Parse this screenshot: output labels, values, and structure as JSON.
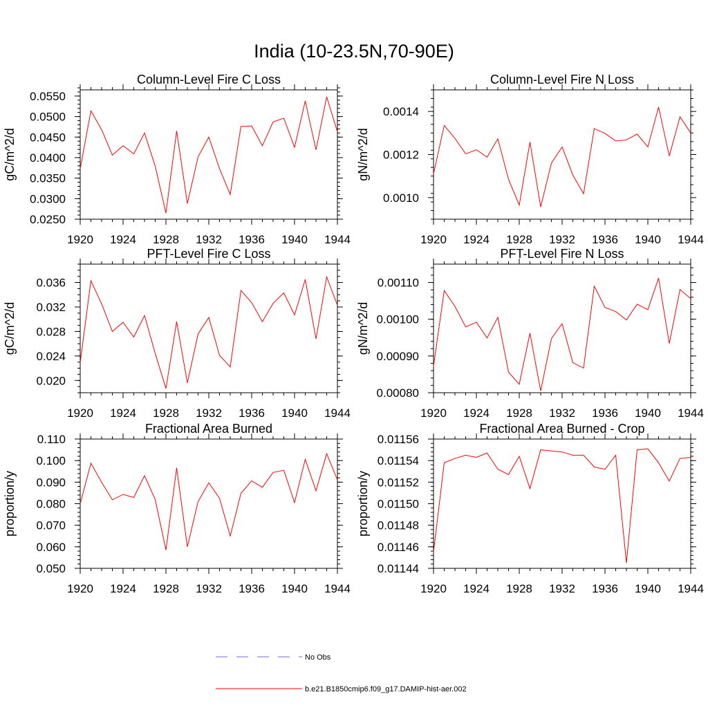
{
  "figure": {
    "title": "India (10-23.5N,70-90E)"
  },
  "legend": {
    "entries": [
      {
        "label": "No Obs",
        "color": "#6b6bd6",
        "style": "dashed"
      },
      {
        "label": "b.e21.B1850cmip6.f09_g17.DAMIP-hist-aer.002",
        "color": "#ff0000",
        "style": "solid"
      }
    ]
  },
  "chart_data": [
    {
      "type": "line",
      "title": "Column-Level Fire C Loss",
      "ylabel": "gC/m^2/d",
      "xlabel": "",
      "xlim": [
        1920,
        1944
      ],
      "ylim": [
        0.025,
        0.0565
      ],
      "xticks": [
        1920,
        1924,
        1928,
        1932,
        1936,
        1940,
        1944
      ],
      "yticks": [
        0.025,
        0.03,
        0.035,
        0.04,
        0.045,
        0.05,
        0.055
      ],
      "yticklabels": [
        "0.0250",
        "0.0300",
        "0.0350",
        "0.0400",
        "0.0450",
        "0.0500",
        "0.0550"
      ],
      "yminor": 0.001,
      "x": [
        1920,
        1921,
        1922,
        1923,
        1924,
        1925,
        1926,
        1927,
        1928,
        1929,
        1930,
        1931,
        1932,
        1933,
        1934,
        1935,
        1936,
        1937,
        1938,
        1939,
        1940,
        1941,
        1942,
        1943,
        1944
      ],
      "series": [
        {
          "name": "b.e21.B1850cmip6.f09_g17.DAMIP-hist-aer.002",
          "color": "#ff0000",
          "values": [
            0.0373,
            0.0514,
            0.0468,
            0.0406,
            0.0429,
            0.0409,
            0.046,
            0.0379,
            0.0265,
            0.0465,
            0.0288,
            0.0402,
            0.045,
            0.0373,
            0.031,
            0.0476,
            0.0477,
            0.0429,
            0.0487,
            0.0496,
            0.0425,
            0.0538,
            0.0419,
            0.0548,
            0.0463
          ]
        }
      ]
    },
    {
      "type": "line",
      "title": "Column-Level Fire N Loss",
      "ylabel": "gN/m^2/d",
      "xlabel": "",
      "xlim": [
        1920,
        1944
      ],
      "ylim": [
        0.0009,
        0.0015
      ],
      "xticks": [
        1920,
        1924,
        1928,
        1932,
        1936,
        1940,
        1944
      ],
      "yticks": [
        0.001,
        0.0012,
        0.0014
      ],
      "yticklabels": [
        "0.0010",
        "0.0012",
        "0.0014"
      ],
      "yminor": 4e-05,
      "x": [
        1920,
        1921,
        1922,
        1923,
        1924,
        1925,
        1926,
        1927,
        1928,
        1929,
        1930,
        1931,
        1932,
        1933,
        1934,
        1935,
        1936,
        1937,
        1938,
        1939,
        1940,
        1941,
        1942,
        1943,
        1944
      ],
      "series": [
        {
          "name": "b.e21.B1850cmip6.f09_g17.DAMIP-hist-aer.002",
          "color": "#ff0000",
          "values": [
            0.00111,
            0.001335,
            0.001275,
            0.001203,
            0.001222,
            0.001188,
            0.001273,
            0.001085,
            0.000965,
            0.001258,
            0.000957,
            0.00116,
            0.001235,
            0.001105,
            0.001018,
            0.00132,
            0.001298,
            0.001263,
            0.001268,
            0.001295,
            0.001235,
            0.00142,
            0.001193,
            0.001375,
            0.0013
          ]
        }
      ]
    },
    {
      "type": "line",
      "title": "PFT-Level Fire C Loss",
      "ylabel": "gC/m^2/d",
      "xlabel": "",
      "xlim": [
        1920,
        1944
      ],
      "ylim": [
        0.018,
        0.039
      ],
      "xticks": [
        1920,
        1924,
        1928,
        1932,
        1936,
        1940,
        1944
      ],
      "yticks": [
        0.02,
        0.024,
        0.028,
        0.032,
        0.036
      ],
      "yticklabels": [
        "0.020",
        "0.024",
        "0.028",
        "0.032",
        "0.036"
      ],
      "yminor": 0.001,
      "x": [
        1920,
        1921,
        1922,
        1923,
        1924,
        1925,
        1926,
        1927,
        1928,
        1929,
        1930,
        1931,
        1932,
        1933,
        1934,
        1935,
        1936,
        1937,
        1938,
        1939,
        1940,
        1941,
        1942,
        1943,
        1944
      ],
      "series": [
        {
          "name": "b.e21.B1850cmip6.f09_g17.DAMIP-hist-aer.002",
          "color": "#ff0000",
          "values": [
            0.0229,
            0.0363,
            0.0325,
            0.028,
            0.0295,
            0.0271,
            0.0306,
            0.0244,
            0.0187,
            0.0296,
            0.0196,
            0.0276,
            0.0303,
            0.0241,
            0.0222,
            0.0347,
            0.0327,
            0.0296,
            0.0326,
            0.0343,
            0.0307,
            0.0365,
            0.0268,
            0.0369,
            0.0323
          ]
        }
      ]
    },
    {
      "type": "line",
      "title": "PFT-Level Fire N Loss",
      "ylabel": "gN/m^2/d",
      "xlabel": "",
      "xlim": [
        1920,
        1944
      ],
      "ylim": [
        0.0008,
        0.00115
      ],
      "xticks": [
        1920,
        1924,
        1928,
        1932,
        1936,
        1940,
        1944
      ],
      "yticks": [
        0.0008,
        0.0009,
        0.001,
        0.0011
      ],
      "yticklabels": [
        "0.00080",
        "0.00090",
        "0.00100",
        "0.00110"
      ],
      "yminor": 2e-05,
      "x": [
        1920,
        1921,
        1922,
        1923,
        1924,
        1925,
        1926,
        1927,
        1928,
        1929,
        1930,
        1931,
        1932,
        1933,
        1934,
        1935,
        1936,
        1937,
        1938,
        1939,
        1940,
        1941,
        1942,
        1943,
        1944
      ],
      "series": [
        {
          "name": "b.e21.B1850cmip6.f09_g17.DAMIP-hist-aer.002",
          "color": "#ff0000",
          "values": [
            0.000872,
            0.001078,
            0.001035,
            0.000979,
            0.000992,
            0.000949,
            0.001005,
            0.000856,
            0.000823,
            0.000962,
            0.000805,
            0.000947,
            0.000988,
            0.000882,
            0.000867,
            0.00109,
            0.001032,
            0.001021,
            0.000998,
            0.001041,
            0.001026,
            0.001112,
            0.000934,
            0.001081,
            0.001056
          ]
        }
      ]
    },
    {
      "type": "line",
      "title": "Fractional Area Burned",
      "ylabel": "proportion/y",
      "xlabel": "",
      "xlim": [
        1920,
        1944
      ],
      "ylim": [
        0.05,
        0.11
      ],
      "xticks": [
        1920,
        1924,
        1928,
        1932,
        1936,
        1940,
        1944
      ],
      "yticks": [
        0.05,
        0.06,
        0.07,
        0.08,
        0.09,
        0.1,
        0.11
      ],
      "yticklabels": [
        "0.050",
        "0.060",
        "0.070",
        "0.080",
        "0.090",
        "0.100",
        "0.110"
      ],
      "yminor": 0.002,
      "x": [
        1920,
        1921,
        1922,
        1923,
        1924,
        1925,
        1926,
        1927,
        1928,
        1929,
        1930,
        1931,
        1932,
        1933,
        1934,
        1935,
        1936,
        1937,
        1938,
        1939,
        1940,
        1941,
        1942,
        1943,
        1944
      ],
      "series": [
        {
          "name": "b.e21.B1850cmip6.f09_g17.DAMIP-hist-aer.002",
          "color": "#ff0000",
          "values": [
            0.08,
            0.0988,
            0.0899,
            0.0818,
            0.0843,
            0.0829,
            0.093,
            0.0819,
            0.0585,
            0.0966,
            0.06,
            0.081,
            0.0897,
            0.0825,
            0.065,
            0.0848,
            0.0906,
            0.0876,
            0.0945,
            0.0955,
            0.0805,
            0.1006,
            0.086,
            0.1032,
            0.091
          ]
        }
      ]
    },
    {
      "type": "line",
      "title": "Fractional Area Burned - Crop",
      "ylabel": "proportion/y",
      "xlabel": "",
      "xlim": [
        1920,
        1944
      ],
      "ylim": [
        0.01144,
        0.01156
      ],
      "xticks": [
        1920,
        1924,
        1928,
        1932,
        1936,
        1940,
        1944
      ],
      "yticks": [
        0.01144,
        0.01146,
        0.01148,
        0.0115,
        0.01152,
        0.01154,
        0.01156
      ],
      "yticklabels": [
        "0.01144",
        "0.01146",
        "0.01148",
        "0.01150",
        "0.01152",
        "0.01154",
        "0.01156"
      ],
      "yminor": 4e-06,
      "x": [
        1920,
        1921,
        1922,
        1923,
        1924,
        1925,
        1926,
        1927,
        1928,
        1929,
        1930,
        1931,
        1932,
        1933,
        1934,
        1935,
        1936,
        1937,
        1938,
        1939,
        1940,
        1941,
        1942,
        1943,
        1944
      ],
      "series": [
        {
          "name": "b.e21.B1850cmip6.f09_g17.DAMIP-hist-aer.002",
          "color": "#ff0000",
          "values": [
            0.011455,
            0.011538,
            0.011542,
            0.011545,
            0.011543,
            0.011547,
            0.011532,
            0.011527,
            0.011544,
            0.011514,
            0.01155,
            0.011549,
            0.011548,
            0.011545,
            0.011545,
            0.011534,
            0.011532,
            0.011545,
            0.011445,
            0.01155,
            0.011551,
            0.011538,
            0.011521,
            0.011542,
            0.011543
          ]
        }
      ]
    }
  ]
}
